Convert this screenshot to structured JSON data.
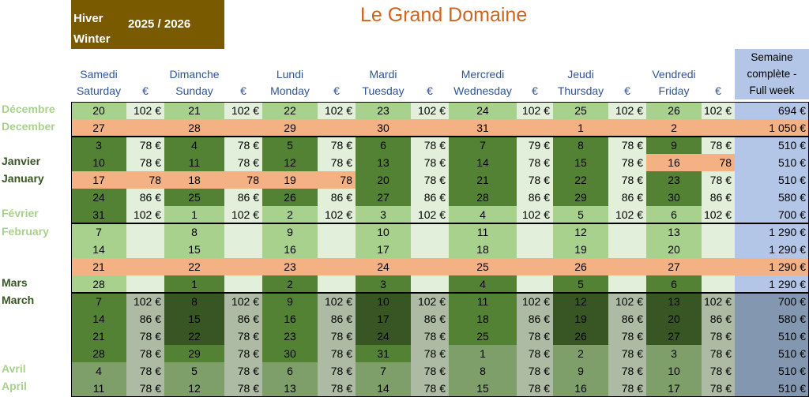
{
  "header": {
    "season_fr": "Hiver",
    "season_en": "Winter",
    "season_year": "2025 / 2026",
    "title": "Le Grand Domaine"
  },
  "columns": [
    {
      "fr": "Samedi",
      "en": "Saturday"
    },
    {
      "fr": "Dimanche",
      "en": "Sunday"
    },
    {
      "fr": "Lundi",
      "en": "Monday"
    },
    {
      "fr": "Mardi",
      "en": "Tuesday"
    },
    {
      "fr": "Mercredi",
      "en": "Wednesday"
    },
    {
      "fr": "Jeudi",
      "en": "Thursday"
    },
    {
      "fr": "Vendredi",
      "en": "Friday"
    }
  ],
  "price_header": "€",
  "week_header": [
    "Semaine",
    "complète -",
    "Full week"
  ],
  "months": [
    {
      "fr": "Décembre",
      "en": "December",
      "color": "#a9d18e"
    },
    {
      "fr": "Janvier",
      "en": "January",
      "color": "#375623"
    },
    {
      "fr": "Février",
      "en": "February",
      "color": "#a9d18e"
    },
    {
      "fr": "Mars",
      "en": "March",
      "color": "#375623"
    },
    {
      "fr": "Avril",
      "en": "April",
      "color": "#a9d18e"
    }
  ],
  "colors": {
    "light_green": "#a9d18e",
    "pale_green": "#e2efda",
    "mid_green": "#548235",
    "dark_green": "#375623",
    "salmon": "#f4b183",
    "blue": "#b4c6e7",
    "grey_blue": "#8497b0",
    "grey_green": "#aebba4",
    "sage": "#7f9f6a",
    "header_blue": "#2f5597",
    "brown": "#7a5a00",
    "title_orange": "#d0641e"
  },
  "rows": [
    {
      "days": [
        [
          "20",
          "102 €"
        ],
        [
          "21",
          "102 €"
        ],
        [
          "22",
          "102 €"
        ],
        [
          "23",
          "102 €"
        ],
        [
          "24",
          "102 €"
        ],
        [
          "25",
          "102 €"
        ],
        [
          "26",
          "102 €"
        ]
      ],
      "week": "694 €",
      "tone": "light"
    },
    {
      "days": [
        [
          "27",
          ""
        ],
        [
          "28",
          ""
        ],
        [
          "29",
          ""
        ],
        [
          "30",
          ""
        ],
        [
          "31",
          ""
        ],
        [
          "1",
          ""
        ],
        [
          "2",
          ""
        ]
      ],
      "week": "1 050 €",
      "tone": "salmon"
    },
    {
      "days": [
        [
          "3",
          "78 €"
        ],
        [
          "4",
          "78 €"
        ],
        [
          "5",
          "78 €"
        ],
        [
          "6",
          "78 €"
        ],
        [
          "7",
          "79 €"
        ],
        [
          "8",
          "78 €"
        ],
        [
          "9",
          "78 €"
        ]
      ],
      "week": "510 €",
      "tone": "mid"
    },
    {
      "days": [
        [
          "10",
          "78 €"
        ],
        [
          "11",
          "78 €"
        ],
        [
          "12",
          "78 €"
        ],
        [
          "13",
          "78 €"
        ],
        [
          "14",
          "78 €"
        ],
        [
          "15",
          "78 €"
        ],
        [
          "16",
          "78"
        ]
      ],
      "week": "510 €",
      "tone": "mid",
      "salmon_days": [
        6
      ]
    },
    {
      "days": [
        [
          "17",
          "78"
        ],
        [
          "18",
          "78"
        ],
        [
          "19",
          "78"
        ],
        [
          "20",
          "78 €"
        ],
        [
          "21",
          "78 €"
        ],
        [
          "22",
          "78 €"
        ],
        [
          "23",
          "78 €"
        ]
      ],
      "week": "510 €",
      "tone": "mid",
      "salmon_days": [
        0,
        1,
        2
      ]
    },
    {
      "days": [
        [
          "24",
          "86 €"
        ],
        [
          "25",
          "86 €"
        ],
        [
          "26",
          "86 €"
        ],
        [
          "27",
          "86 €"
        ],
        [
          "28",
          "86 €"
        ],
        [
          "29",
          "86 €"
        ],
        [
          "30",
          "86 €"
        ]
      ],
      "week": "580 €",
      "tone": "mid"
    },
    {
      "days": [
        [
          "31",
          "102 €"
        ],
        [
          "1",
          "102 €"
        ],
        [
          "2",
          "102 €"
        ],
        [
          "3",
          "102 €"
        ],
        [
          "4",
          "102 €"
        ],
        [
          "5",
          "102 €"
        ],
        [
          "6",
          "102 €"
        ]
      ],
      "week": "700 €",
      "tone": "mixed"
    },
    {
      "days": [
        [
          "7",
          ""
        ],
        [
          "8",
          ""
        ],
        [
          "9",
          ""
        ],
        [
          "10",
          ""
        ],
        [
          "11",
          ""
        ],
        [
          "12",
          ""
        ],
        [
          "13",
          ""
        ]
      ],
      "week": "1 290 €",
      "tone": "light"
    },
    {
      "days": [
        [
          "14",
          ""
        ],
        [
          "15",
          ""
        ],
        [
          "16",
          ""
        ],
        [
          "17",
          ""
        ],
        [
          "18",
          ""
        ],
        [
          "19",
          ""
        ],
        [
          "20",
          ""
        ]
      ],
      "week": "1 290 €",
      "tone": "light"
    },
    {
      "days": [
        [
          "21",
          ""
        ],
        [
          "22",
          ""
        ],
        [
          "23",
          ""
        ],
        [
          "24",
          ""
        ],
        [
          "25",
          ""
        ],
        [
          "26",
          ""
        ],
        [
          "27",
          ""
        ]
      ],
      "week": "1 290 €",
      "tone": "salmon"
    },
    {
      "days": [
        [
          "28",
          ""
        ],
        [
          "1",
          ""
        ],
        [
          "2",
          ""
        ],
        [
          "3",
          ""
        ],
        [
          "4",
          ""
        ],
        [
          "5",
          ""
        ],
        [
          "6",
          ""
        ]
      ],
      "week": "1 290 €",
      "tone": "mixed2"
    },
    {
      "days": [
        [
          "7",
          "102 €"
        ],
        [
          "8",
          "102 €"
        ],
        [
          "9",
          "102 €"
        ],
        [
          "10",
          "102 €"
        ],
        [
          "11",
          "102 €"
        ],
        [
          "12",
          "102 €"
        ],
        [
          "13",
          "102 €"
        ]
      ],
      "week": "700 €",
      "tone": "late"
    },
    {
      "days": [
        [
          "14",
          "86 €"
        ],
        [
          "15",
          "86 €"
        ],
        [
          "16",
          "86 €"
        ],
        [
          "17",
          "86 €"
        ],
        [
          "18",
          "86 €"
        ],
        [
          "19",
          "86 €"
        ],
        [
          "20",
          "86 €"
        ]
      ],
      "week": "580 €",
      "tone": "late"
    },
    {
      "days": [
        [
          "21",
          "78 €"
        ],
        [
          "22",
          "78 €"
        ],
        [
          "23",
          "78 €"
        ],
        [
          "24",
          "78 €"
        ],
        [
          "25",
          "78 €"
        ],
        [
          "26",
          "78 €"
        ],
        [
          "27",
          "78 €"
        ]
      ],
      "week": "510 €",
      "tone": "late"
    },
    {
      "days": [
        [
          "28",
          "78 €"
        ],
        [
          "29",
          "78 €"
        ],
        [
          "30",
          "78 €"
        ],
        [
          "31",
          "78 €"
        ],
        [
          "1",
          "78 €"
        ],
        [
          "2",
          "78 €"
        ],
        [
          "3",
          "78 €"
        ]
      ],
      "week": "510 €",
      "tone": "late2"
    },
    {
      "days": [
        [
          "4",
          "78 €"
        ],
        [
          "5",
          "78 €"
        ],
        [
          "6",
          "78 €"
        ],
        [
          "7",
          "78 €"
        ],
        [
          "8",
          "78 €"
        ],
        [
          "9",
          "78 €"
        ],
        [
          "10",
          "78 €"
        ]
      ],
      "week": "510 €",
      "tone": "sage"
    },
    {
      "days": [
        [
          "11",
          "78 €"
        ],
        [
          "12",
          "78 €"
        ],
        [
          "13",
          "78 €"
        ],
        [
          "14",
          "78 €"
        ],
        [
          "15",
          "78 €"
        ],
        [
          "16",
          "78 €"
        ],
        [
          "17",
          "78 €"
        ]
      ],
      "week": "510 €",
      "tone": "sage"
    }
  ]
}
